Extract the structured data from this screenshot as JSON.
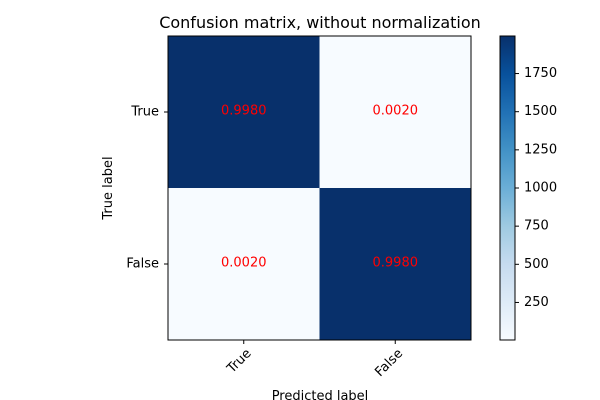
{
  "chart_data": {
    "type": "heatmap",
    "title": "Confusion matrix, without normalization",
    "xlabel": "Predicted label",
    "ylabel": "True label",
    "row_labels": [
      "True",
      "False"
    ],
    "col_labels": [
      "True",
      "False"
    ],
    "values": [
      [
        0.998,
        0.002
      ],
      [
        0.002,
        0.998
      ]
    ],
    "cell_labels": [
      [
        "0.9980",
        "0.0020"
      ],
      [
        "0.0020",
        "0.9980"
      ]
    ],
    "cell_color_counts": [
      [
        1996,
        4
      ],
      [
        4,
        1996
      ]
    ],
    "annotation_color": "#ff0000",
    "colormap": "Blues",
    "colorbar": {
      "range": [
        4,
        1996
      ],
      "ticks": [
        250,
        500,
        750,
        1000,
        1250,
        1500,
        1750
      ],
      "tick_labels": [
        "250",
        "500",
        "750",
        "1000",
        "1250",
        "1500",
        "1750"
      ]
    },
    "grid": false
  }
}
